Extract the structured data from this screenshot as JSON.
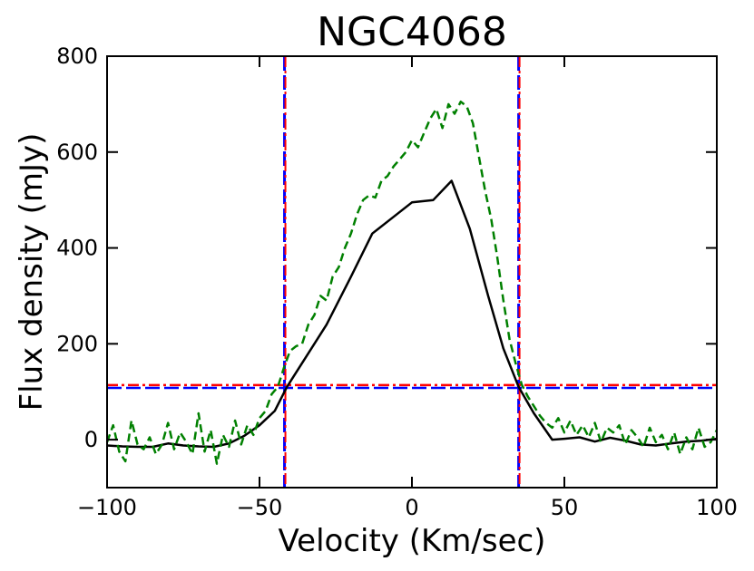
{
  "chart_data": {
    "type": "line",
    "title": "NGC4068",
    "xlabel": "Velocity (Km/sec)",
    "ylabel": "Flux density (mJy)",
    "xlim": [
      -100,
      100
    ],
    "ylim": [
      -100,
      800
    ],
    "xticks": [
      -100,
      -50,
      0,
      50,
      100
    ],
    "xtick_labels": [
      "−100",
      "−50",
      "0",
      "50",
      "100"
    ],
    "yticks": [
      0,
      200,
      400,
      600,
      800
    ],
    "ytick_labels": [
      "0",
      "200",
      "400",
      "600",
      "800"
    ],
    "colors": {
      "black_line": "#000000",
      "green_dashed": "#008000",
      "red_dashdot": "#ff0000",
      "blue_dashed": "#0000ff"
    },
    "series": [
      {
        "name": "black-line",
        "style": "solid",
        "color": "#000000",
        "points": [
          [
            -100,
            -12
          ],
          [
            -95,
            -14
          ],
          [
            -90,
            -15
          ],
          [
            -85,
            -15
          ],
          [
            -80,
            -8
          ],
          [
            -75,
            -12
          ],
          [
            -70,
            -14
          ],
          [
            -65,
            -15
          ],
          [
            -60,
            -8
          ],
          [
            -55,
            8
          ],
          [
            -50,
            30
          ],
          [
            -45,
            60
          ],
          [
            -41,
            110
          ],
          [
            -35,
            170
          ],
          [
            -28,
            240
          ],
          [
            -20,
            340
          ],
          [
            -13,
            430
          ],
          [
            -7,
            460
          ],
          [
            0,
            495
          ],
          [
            7,
            500
          ],
          [
            13,
            540
          ],
          [
            19,
            440
          ],
          [
            25,
            300
          ],
          [
            30,
            190
          ],
          [
            35,
            110
          ],
          [
            40,
            55
          ],
          [
            46,
            0
          ],
          [
            50,
            2
          ],
          [
            55,
            5
          ],
          [
            60,
            -4
          ],
          [
            65,
            4
          ],
          [
            70,
            -2
          ],
          [
            75,
            -10
          ],
          [
            80,
            -12
          ],
          [
            85,
            -8
          ],
          [
            90,
            -4
          ],
          [
            95,
            -2
          ],
          [
            100,
            2
          ]
        ]
      },
      {
        "name": "green-dashed",
        "style": "dashed",
        "color": "#008000",
        "points": [
          [
            -100,
            -5
          ],
          [
            -98,
            30
          ],
          [
            -96,
            -25
          ],
          [
            -94,
            -45
          ],
          [
            -92,
            40
          ],
          [
            -90,
            -10
          ],
          [
            -88,
            -20
          ],
          [
            -86,
            5
          ],
          [
            -84,
            -30
          ],
          [
            -82,
            -10
          ],
          [
            -80,
            35
          ],
          [
            -78,
            -20
          ],
          [
            -76,
            15
          ],
          [
            -74,
            -5
          ],
          [
            -72,
            -30
          ],
          [
            -70,
            55
          ],
          [
            -68,
            -25
          ],
          [
            -66,
            20
          ],
          [
            -64,
            -50
          ],
          [
            -62,
            10
          ],
          [
            -60,
            -15
          ],
          [
            -58,
            40
          ],
          [
            -56,
            -10
          ],
          [
            -54,
            30
          ],
          [
            -52,
            10
          ],
          [
            -50,
            45
          ],
          [
            -48,
            60
          ],
          [
            -46,
            95
          ],
          [
            -44,
            110
          ],
          [
            -42,
            150
          ],
          [
            -40,
            185
          ],
          [
            -38,
            195
          ],
          [
            -36,
            200
          ],
          [
            -34,
            240
          ],
          [
            -32,
            260
          ],
          [
            -30,
            300
          ],
          [
            -28,
            290
          ],
          [
            -26,
            340
          ],
          [
            -24,
            360
          ],
          [
            -22,
            400
          ],
          [
            -20,
            430
          ],
          [
            -18,
            470
          ],
          [
            -16,
            500
          ],
          [
            -14,
            510
          ],
          [
            -12,
            505
          ],
          [
            -10,
            540
          ],
          [
            -8,
            550
          ],
          [
            -6,
            570
          ],
          [
            -4,
            585
          ],
          [
            -2,
            600
          ],
          [
            0,
            625
          ],
          [
            2,
            610
          ],
          [
            4,
            640
          ],
          [
            6,
            670
          ],
          [
            8,
            690
          ],
          [
            10,
            650
          ],
          [
            12,
            700
          ],
          [
            14,
            680
          ],
          [
            16,
            705
          ],
          [
            18,
            695
          ],
          [
            20,
            660
          ],
          [
            22,
            590
          ],
          [
            24,
            520
          ],
          [
            26,
            460
          ],
          [
            28,
            380
          ],
          [
            30,
            290
          ],
          [
            32,
            210
          ],
          [
            34,
            160
          ],
          [
            36,
            115
          ],
          [
            38,
            90
          ],
          [
            40,
            70
          ],
          [
            42,
            50
          ],
          [
            44,
            35
          ],
          [
            46,
            25
          ],
          [
            48,
            45
          ],
          [
            50,
            15
          ],
          [
            52,
            40
          ],
          [
            54,
            10
          ],
          [
            56,
            30
          ],
          [
            58,
            5
          ],
          [
            60,
            35
          ],
          [
            62,
            -5
          ],
          [
            64,
            25
          ],
          [
            66,
            15
          ],
          [
            68,
            30
          ],
          [
            70,
            -10
          ],
          [
            72,
            20
          ],
          [
            74,
            5
          ],
          [
            76,
            -15
          ],
          [
            78,
            25
          ],
          [
            80,
            -5
          ],
          [
            82,
            10
          ],
          [
            84,
            -20
          ],
          [
            86,
            15
          ],
          [
            88,
            -30
          ],
          [
            90,
            5
          ],
          [
            92,
            -20
          ],
          [
            94,
            25
          ],
          [
            96,
            -15
          ],
          [
            98,
            -5
          ],
          [
            100,
            20
          ]
        ]
      }
    ],
    "reference_lines": {
      "red_horizontal_y": 114,
      "blue_horizontal_y": 108,
      "red_vertical_x": [
        -41.5,
        35.3
      ],
      "blue_vertical_x": [
        -41.8,
        35.0
      ]
    }
  }
}
